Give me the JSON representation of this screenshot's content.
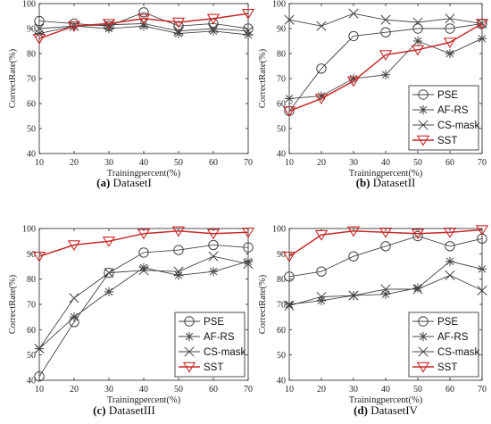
{
  "figure": {
    "background": "#ffffff"
  },
  "styles": {
    "PSE": {
      "color": "#444444",
      "marker": "circle"
    },
    "AF-RS": {
      "color": "#444444",
      "marker": "asterisk"
    },
    "CS-mask": {
      "color": "#444444",
      "marker": "x"
    },
    "SST": {
      "color": "#c62828",
      "marker": "triangle-down"
    }
  },
  "chart_data": [
    {
      "type": "line",
      "caption_letter": "(a)",
      "caption_text": "DatasetI",
      "xlabel": "Trainingpercent(%)",
      "ylabel": "CorrectRate(%)",
      "x": [
        10,
        20,
        30,
        40,
        50,
        60,
        70
      ],
      "xlim": [
        10,
        70
      ],
      "ylim": [
        40,
        100
      ],
      "xticks": [
        "10",
        "20",
        "30",
        "40",
        "50",
        "60",
        "70"
      ],
      "yticks": [
        "40",
        "50",
        "60",
        "70",
        "80",
        "90",
        "100"
      ],
      "grid": false,
      "legend": "none",
      "series": [
        {
          "name": "PSE",
          "values": [
            93,
            92,
            91,
            96.5,
            91,
            92,
            90
          ]
        },
        {
          "name": "AF-RS",
          "values": [
            88,
            91,
            90,
            91,
            88,
            89,
            87.5
          ]
        },
        {
          "name": "CS-mask",
          "values": [
            90,
            91,
            91.5,
            92,
            89,
            90,
            89
          ]
        },
        {
          "name": "SST",
          "values": [
            86,
            91,
            92,
            94,
            92.5,
            94,
            96
          ]
        }
      ]
    },
    {
      "type": "line",
      "caption_letter": "(b)",
      "caption_text": "DatasetII",
      "xlabel": "Trainingpercent(%)",
      "ylabel": "CorrectRate(%)",
      "x": [
        10,
        20,
        30,
        40,
        50,
        60,
        70
      ],
      "xlim": [
        10,
        70
      ],
      "ylim": [
        40,
        100
      ],
      "xticks": [
        "10",
        "20",
        "30",
        "40",
        "50",
        "60",
        "70"
      ],
      "yticks": [
        "40",
        "50",
        "60",
        "70",
        "80",
        "90",
        "100"
      ],
      "grid": false,
      "legend": "bottom-right",
      "series": [
        {
          "name": "PSE",
          "values": [
            57,
            74,
            87,
            88.5,
            90,
            90,
            92
          ]
        },
        {
          "name": "AF-RS",
          "values": [
            62,
            63,
            70,
            71.5,
            85,
            80,
            86
          ]
        },
        {
          "name": "CS-mask",
          "values": [
            93.5,
            91,
            96,
            93.5,
            92.5,
            94,
            92
          ]
        },
        {
          "name": "SST",
          "values": [
            57,
            62,
            69,
            79.5,
            81.5,
            84.5,
            92
          ]
        }
      ]
    },
    {
      "type": "line",
      "caption_letter": "(c)",
      "caption_text": "DatasetIII",
      "xlabel": "Trainingpercent(%)",
      "ylabel": "CorrectRate(%)",
      "x": [
        10,
        20,
        30,
        40,
        50,
        60,
        70
      ],
      "xlim": [
        10,
        70
      ],
      "ylim": [
        40,
        100
      ],
      "xticks": [
        "10",
        "20",
        "30",
        "40",
        "50",
        "60",
        "70"
      ],
      "yticks": [
        "40",
        "50",
        "60",
        "70",
        "80",
        "90",
        "100"
      ],
      "grid": false,
      "legend": "bottom-right",
      "series": [
        {
          "name": "PSE",
          "values": [
            41.5,
            63,
            82.5,
            90.5,
            91.5,
            93.5,
            92.5
          ]
        },
        {
          "name": "AF-RS",
          "values": [
            52.5,
            65,
            75,
            84.5,
            81.5,
            83,
            87
          ]
        },
        {
          "name": "CS-mask",
          "values": [
            52.5,
            72.5,
            82.5,
            83.5,
            83,
            89,
            86
          ]
        },
        {
          "name": "SST",
          "values": [
            89,
            93.5,
            95,
            98,
            99,
            98,
            98.5
          ]
        }
      ]
    },
    {
      "type": "line",
      "caption_letter": "(d)",
      "caption_text": "DatasetIV",
      "xlabel": "Trainingpercent(%)",
      "ylabel": "CorrectRate(%)",
      "x": [
        10,
        20,
        30,
        40,
        50,
        60,
        70
      ],
      "xlim": [
        10,
        70
      ],
      "ylim": [
        40,
        100
      ],
      "xticks": [
        "10",
        "20",
        "30",
        "40",
        "50",
        "60",
        "70"
      ],
      "yticks": [
        "40",
        "50",
        "60",
        "70",
        "80",
        "90",
        "100"
      ],
      "grid": false,
      "legend": "bottom-right",
      "series": [
        {
          "name": "PSE",
          "values": [
            81,
            83,
            89,
            93,
            97,
            93,
            96
          ]
        },
        {
          "name": "AF-RS",
          "values": [
            70,
            71.5,
            73.5,
            74,
            76.5,
            87,
            84
          ]
        },
        {
          "name": "CS-mask",
          "values": [
            69.5,
            73,
            73.5,
            76,
            76,
            81.5,
            75.5
          ]
        },
        {
          "name": "SST",
          "values": [
            89,
            97.5,
            99,
            98.5,
            98,
            98.5,
            99.5
          ]
        }
      ]
    }
  ]
}
